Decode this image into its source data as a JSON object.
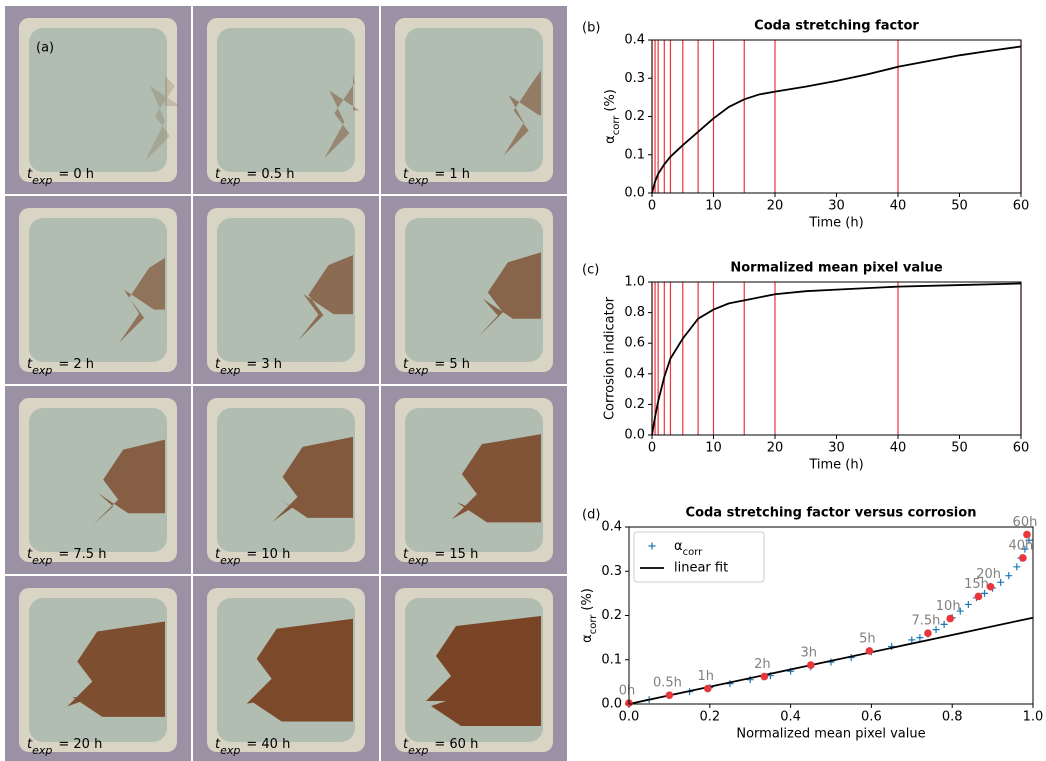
{
  "photo_panel": {
    "label": "(a)",
    "symbol": "t",
    "subscript": "exp",
    "captions": [
      "= 0 h",
      "= 0.5 h",
      "= 1 h",
      "= 2 h",
      "= 3 h",
      "= 5 h",
      "= 7.5 h",
      "= 10 h",
      "= 15 h",
      "= 20 h",
      "= 40 h",
      "= 60 h"
    ]
  },
  "chart_data": [
    {
      "type": "line",
      "panel_label": "(b)",
      "title": "Coda stretching factor",
      "xlabel": "Time (h)",
      "ylabel": {
        "symbol": "α",
        "subscript": "corr",
        "unit": "(%)"
      },
      "x": [
        0,
        0.5,
        1,
        2,
        3,
        5,
        7.5,
        10,
        12.5,
        15,
        17.5,
        20,
        25,
        30,
        35,
        40,
        45,
        50,
        55,
        60
      ],
      "series": [
        {
          "color": "#000000",
          "values": [
            0,
            0.03,
            0.05,
            0.075,
            0.095,
            0.125,
            0.16,
            0.195,
            0.225,
            0.245,
            0.258,
            0.265,
            0.278,
            0.293,
            0.31,
            0.33,
            0.345,
            0.36,
            0.372,
            0.383
          ]
        }
      ],
      "vlines": {
        "color": "#e8363a",
        "x": [
          0,
          0.5,
          1,
          2,
          3,
          5,
          7.5,
          10,
          15,
          20,
          40,
          60
        ]
      },
      "xlim": [
        0,
        60
      ],
      "xticks": [
        0,
        10,
        20,
        30,
        40,
        50,
        60
      ],
      "ylim": [
        0,
        0.4
      ],
      "yticks": [
        {
          "value": 0,
          "label": "0.0"
        },
        0.1,
        0.2,
        0.3,
        0.4
      ]
    },
    {
      "type": "line",
      "panel_label": "(c)",
      "title": "Normalized mean pixel value",
      "xlabel": "Time (h)",
      "ylabel": "Corrosion indicator",
      "x": [
        0,
        0.5,
        1,
        2,
        3,
        5,
        7.5,
        10,
        12.5,
        15,
        20,
        25,
        30,
        40,
        50,
        60
      ],
      "series": [
        {
          "color": "#000000",
          "values": [
            0,
            0.12,
            0.22,
            0.38,
            0.5,
            0.63,
            0.76,
            0.82,
            0.86,
            0.88,
            0.92,
            0.94,
            0.95,
            0.97,
            0.98,
            0.99
          ]
        }
      ],
      "vlines": {
        "color": "#e8363a",
        "x": [
          0,
          0.5,
          1,
          2,
          3,
          5,
          7.5,
          10,
          15,
          20,
          40,
          60
        ]
      },
      "xlim": [
        0,
        60
      ],
      "xticks": [
        0,
        10,
        20,
        30,
        40,
        50,
        60
      ],
      "ylim": [
        0,
        1
      ],
      "yticks": [
        {
          "value": 0,
          "label": "0.0"
        },
        0.2,
        0.4,
        0.6,
        0.8,
        {
          "value": 1,
          "label": "1.0"
        }
      ]
    },
    {
      "type": "scatter",
      "panel_label": "(d)",
      "title": "Coda stretching factor versus corrosion",
      "xlabel": "Normalized mean pixel value",
      "ylabel": {
        "symbol": "α",
        "subscript": "corr",
        "unit": "(%)"
      },
      "series": [
        {
          "name": {
            "symbol": "α",
            "subscript": "corr"
          },
          "color": "#1f77b4",
          "x": [
            0,
            0.05,
            0.1,
            0.15,
            0.2,
            0.25,
            0.3,
            0.35,
            0.4,
            0.45,
            0.5,
            0.55,
            0.6,
            0.65,
            0.7,
            0.72,
            0.74,
            0.76,
            0.78,
            0.8,
            0.82,
            0.84,
            0.86,
            0.88,
            0.9,
            0.92,
            0.94,
            0.96,
            0.97,
            0.98,
            0.99
          ],
          "values": [
            0,
            0.01,
            0.02,
            0.028,
            0.037,
            0.046,
            0.055,
            0.064,
            0.074,
            0.084,
            0.095,
            0.105,
            0.118,
            0.13,
            0.145,
            0.15,
            0.158,
            0.168,
            0.18,
            0.195,
            0.21,
            0.225,
            0.24,
            0.25,
            0.262,
            0.275,
            0.29,
            0.31,
            0.33,
            0.35,
            0.37
          ]
        },
        {
          "name": "linear fit",
          "type": "line",
          "color": "#000000",
          "x": [
            0,
            1
          ],
          "values": [
            0,
            0.195
          ]
        }
      ],
      "markers": {
        "color": "#e8363a",
        "label_color": "#808080",
        "x": [
          0,
          0.1,
          0.195,
          0.335,
          0.45,
          0.595,
          0.74,
          0.795,
          0.865,
          0.895,
          0.975,
          0.985
        ],
        "values": [
          0.002,
          0.02,
          0.035,
          0.062,
          0.088,
          0.12,
          0.16,
          0.193,
          0.243,
          0.265,
          0.33,
          0.383
        ],
        "labels": [
          "0h",
          "0.5h",
          "1h",
          "2h",
          "3h",
          "5h",
          "7.5h",
          "10h",
          "15h",
          "20h",
          "40h",
          "60h"
        ]
      },
      "legend": "upper left",
      "xlim": [
        0,
        1
      ],
      "xticks": [
        {
          "value": 0,
          "label": "0.0"
        },
        0.2,
        0.4,
        0.6,
        0.8,
        {
          "value": 1,
          "label": "1.0"
        }
      ],
      "ylim": [
        0,
        0.4
      ],
      "yticks": [
        {
          "value": 0,
          "label": "0.0"
        },
        0.1,
        0.2,
        0.3,
        0.4
      ]
    }
  ]
}
